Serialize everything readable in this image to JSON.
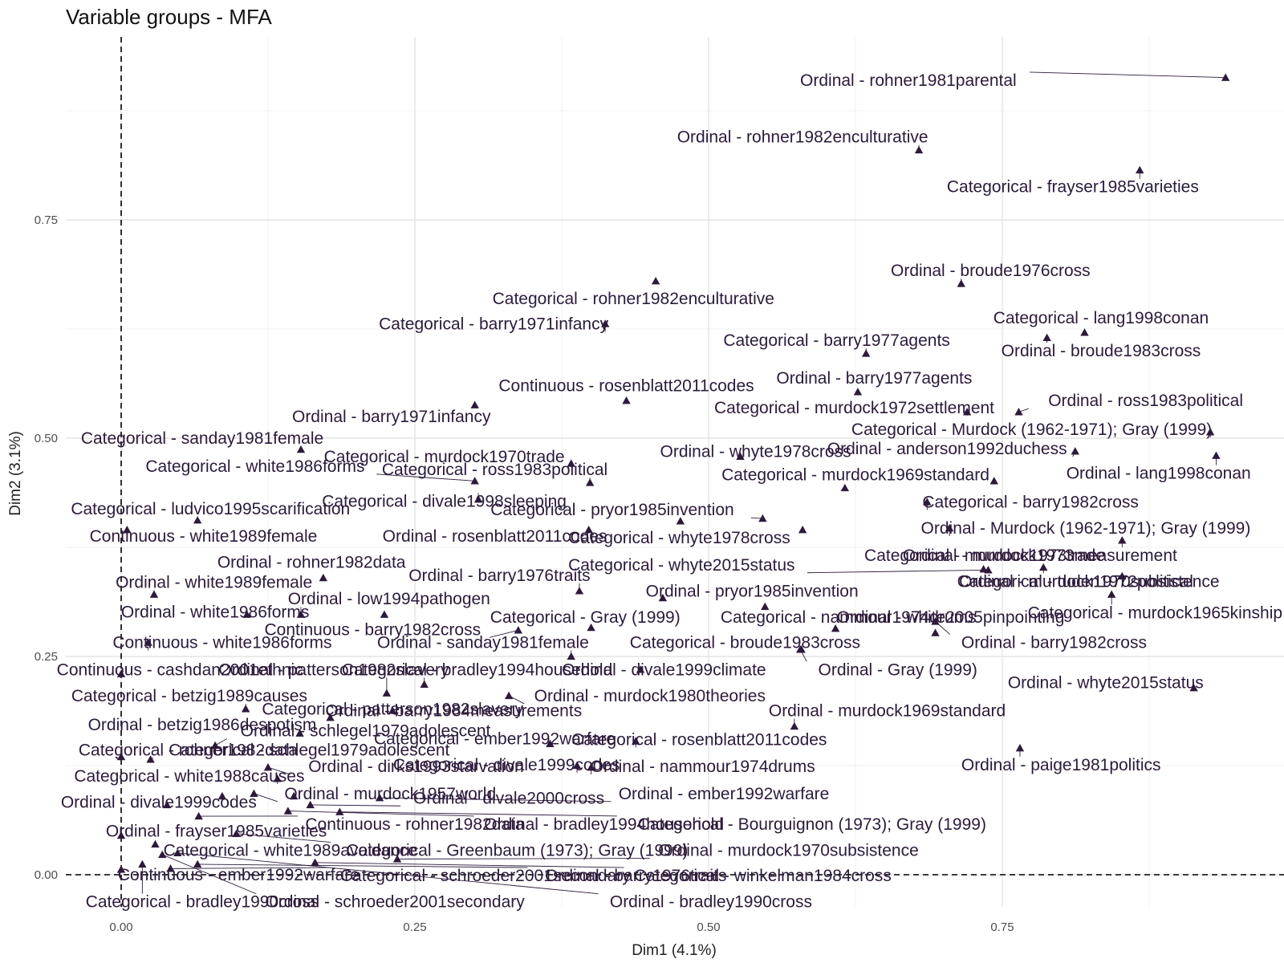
{
  "chart_data": {
    "type": "scatter",
    "title": "Variable groups - MFA",
    "xlabel": "Dim1 (4.1%)",
    "ylabel": "Dim2 (3.1%)",
    "xlim": [
      -0.05,
      1.0
    ],
    "ylim": [
      -0.04,
      0.98
    ],
    "x_ticks": [
      0.0,
      0.25,
      0.5,
      0.75
    ],
    "x_tick_labels": [
      "0.00",
      "0.25",
      "0.50",
      "0.75"
    ],
    "y_ticks": [
      0.0,
      0.25,
      0.5,
      0.75
    ],
    "y_tick_labels": [
      "0.00",
      "0.25",
      "0.50",
      "0.75"
    ],
    "grid": true,
    "reference_lines": "x = 0 and y = 0 (dashed)",
    "marker": "triangle",
    "color": "#2d1a3b",
    "points": [
      {
        "label": "Ordinal - rohner1981parental",
        "x": 0.94,
        "y": 0.913,
        "lx": 0.67,
        "ly": 0.91
      },
      {
        "label": "Ordinal - rohner1982enculturative",
        "x": 0.679,
        "y": 0.83,
        "lx": 0.58,
        "ly": 0.845
      },
      {
        "label": "Categorical - frayser1985varieties",
        "x": 0.867,
        "y": 0.807,
        "lx": 0.81,
        "ly": 0.788
      },
      {
        "label": "Ordinal - broude1976cross",
        "x": 0.715,
        "y": 0.677,
        "lx": 0.74,
        "ly": 0.692
      },
      {
        "label": "Categorical - rohner1982enculturative",
        "x": 0.455,
        "y": 0.68,
        "lx": 0.436,
        "ly": 0.66
      },
      {
        "label": "Categorical - barry1971infancy",
        "x": 0.412,
        "y": 0.631,
        "lx": 0.317,
        "ly": 0.631
      },
      {
        "label": "Categorical - lang1998conan",
        "x": 0.82,
        "y": 0.621,
        "lx": 0.834,
        "ly": 0.638
      },
      {
        "label": "Ordinal - broude1983cross",
        "x": 0.788,
        "y": 0.615,
        "lx": 0.834,
        "ly": 0.6
      },
      {
        "label": "Categorical - barry1977agents",
        "x": 0.634,
        "y": 0.597,
        "lx": 0.609,
        "ly": 0.612
      },
      {
        "label": "Ordinal - barry1977agents",
        "x": 0.627,
        "y": 0.553,
        "lx": 0.641,
        "ly": 0.569
      },
      {
        "label": "Continuous - rosenblatt2011codes",
        "x": 0.43,
        "y": 0.543,
        "lx": 0.43,
        "ly": 0.56
      },
      {
        "label": "Ordinal - barry1971infancy",
        "x": 0.301,
        "y": 0.538,
        "lx": 0.23,
        "ly": 0.525
      },
      {
        "label": "Categorical - murdock1972settlement",
        "x": 0.72,
        "y": 0.53,
        "lx": 0.624,
        "ly": 0.535
      },
      {
        "label": "Ordinal - ross1983political",
        "x": 0.764,
        "y": 0.53,
        "lx": 0.872,
        "ly": 0.543
      },
      {
        "label": "Categorical - Murdock (1962-1971); Gray (1999)",
        "x": 0.927,
        "y": 0.507,
        "lx": 0.775,
        "ly": 0.51
      },
      {
        "label": "Categorical - sanday1981female",
        "x": 0.153,
        "y": 0.487,
        "lx": 0.069,
        "ly": 0.5
      },
      {
        "label": "Categorical - murdock1970trade",
        "x": 0.383,
        "y": 0.471,
        "lx": 0.275,
        "ly": 0.479
      },
      {
        "label": "Ordinal - whyte1978cross",
        "x": 0.527,
        "y": 0.479,
        "lx": 0.54,
        "ly": 0.485
      },
      {
        "label": "Ordinal - anderson1992duchess",
        "x": 0.812,
        "y": 0.485,
        "lx": 0.703,
        "ly": 0.488
      },
      {
        "label": "Ordinal - lang1998conan",
        "x": 0.932,
        "y": 0.48,
        "lx": 0.883,
        "ly": 0.46
      },
      {
        "label": "Categorical - white1986forms",
        "x": 0.301,
        "y": 0.451,
        "lx": 0.114,
        "ly": 0.468
      },
      {
        "label": "Categorical - ross1983political",
        "x": 0.399,
        "y": 0.449,
        "lx": 0.318,
        "ly": 0.464
      },
      {
        "label": "Categorical - murdock1969standard",
        "x": 0.616,
        "y": 0.443,
        "lx": 0.625,
        "ly": 0.458
      },
      {
        "label": "Ordinal - murdock1969standard (marker only)",
        "x": 0.743,
        "y": 0.451,
        "lx": 0.743,
        "ly": 0.451
      },
      {
        "label": "Categorical - divale1998sleeping",
        "x": 0.304,
        "y": 0.43,
        "lx": 0.275,
        "ly": 0.428
      },
      {
        "label": "Categorical - barry1982cross",
        "x": 0.686,
        "y": 0.427,
        "lx": 0.774,
        "ly": 0.427
      },
      {
        "label": "Categorical - ludvico1995scarification",
        "x": 0.065,
        "y": 0.406,
        "lx": 0.076,
        "ly": 0.419
      },
      {
        "label": "Categorical - pryor1985invention",
        "x": 0.546,
        "y": 0.408,
        "lx": 0.418,
        "ly": 0.418
      },
      {
        "label": "Ordinal - pryor1985invention (marker)",
        "x": 0.476,
        "y": 0.405,
        "lx": 0.476,
        "ly": 0.405
      },
      {
        "label": "Ordinal - Murdock (1962-1971); Gray (1999)",
        "x": 0.705,
        "y": 0.397,
        "lx": 0.821,
        "ly": 0.397
      },
      {
        "label": "Continuous - white1989female",
        "x": 0.005,
        "y": 0.395,
        "lx": 0.07,
        "ly": 0.388
      },
      {
        "label": "Ordinal - rosenblatt2011codes",
        "x": 0.398,
        "y": 0.395,
        "lx": 0.318,
        "ly": 0.388
      },
      {
        "label": "Categorical - whyte1978cross",
        "x": 0.58,
        "y": 0.395,
        "lx": 0.475,
        "ly": 0.386
      },
      {
        "label": "Ordinal - murdock1973measurement",
        "x": 0.852,
        "y": 0.383,
        "lx": 0.782,
        "ly": 0.366
      },
      {
        "label": "Categorical - murdock1973trade",
        "x": 0.734,
        "y": 0.35,
        "lx": 0.735,
        "ly": 0.366
      },
      {
        "label": "Ordinal - rohner1982data",
        "x": 0.172,
        "y": 0.34,
        "lx": 0.162,
        "ly": 0.358
      },
      {
        "label": "Categorical - whyte2015status",
        "x": 0.738,
        "y": 0.349,
        "lx": 0.477,
        "ly": 0.355
      },
      {
        "label": "Ordinal - barry1976traits",
        "x": 0.39,
        "y": 0.325,
        "lx": 0.322,
        "ly": 0.343
      },
      {
        "label": "Ordinal - murdock1970subsistence",
        "x": 0.852,
        "y": 0.342,
        "lx": 0.824,
        "ly": 0.336
      },
      {
        "label": "Categorical - tuden1972political",
        "x": 0.785,
        "y": 0.352,
        "lx": 0.812,
        "ly": 0.336
      },
      {
        "label": "Ordinal - white1989female",
        "x": 0.028,
        "y": 0.321,
        "lx": 0.079,
        "ly": 0.335
      },
      {
        "label": "Ordinal - pryor1985invention",
        "x": 0.461,
        "y": 0.317,
        "lx": 0.537,
        "ly": 0.325
      },
      {
        "label": "Ordinal - low1994pathogen",
        "x": 0.153,
        "y": 0.298,
        "lx": 0.228,
        "ly": 0.316
      },
      {
        "label": "Categorical - murdock1965kinship",
        "x": 0.843,
        "y": 0.321,
        "lx": 0.88,
        "ly": 0.3
      },
      {
        "label": "Ordinal - white1986forms",
        "x": 0.107,
        "y": 0.298,
        "lx": 0.08,
        "ly": 0.301
      },
      {
        "label": "Marker near low1994pathogen",
        "x": 0.224,
        "y": 0.298,
        "lx": 0.224,
        "ly": 0.298
      },
      {
        "label": "Ordinal - nammour1974drums (marker)",
        "x": 0.548,
        "y": 0.307,
        "lx": 0.548,
        "ly": 0.307
      },
      {
        "label": "Categorical - Gray (1999)",
        "x": 0.4,
        "y": 0.283,
        "lx": 0.395,
        "ly": 0.295
      },
      {
        "label": "Categorical - nammour1974drums",
        "x": 0.608,
        "y": 0.282,
        "lx": 0.619,
        "ly": 0.295
      },
      {
        "label": "Ordinal - white2005pinpointing",
        "x": 0.693,
        "y": 0.277,
        "lx": 0.706,
        "ly": 0.295
      },
      {
        "label": "Continuous - barry1982cross",
        "x": 0.338,
        "y": 0.28,
        "lx": 0.214,
        "ly": 0.281
      },
      {
        "label": "Ordinal - sanday1981female",
        "x": 0.383,
        "y": 0.25,
        "lx": 0.308,
        "ly": 0.266
      },
      {
        "label": "Categorical - broude1983cross",
        "x": 0.579,
        "y": 0.258,
        "lx": 0.531,
        "ly": 0.266
      },
      {
        "label": "Ordinal - barry1982cross",
        "x": 0.693,
        "y": 0.29,
        "lx": 0.794,
        "ly": 0.266
      },
      {
        "label": "Continuous - white1986forms",
        "x": 0.023,
        "y": 0.266,
        "lx": 0.086,
        "ly": 0.266
      },
      {
        "label": "Ordinal - Gray (1999)",
        "x": 0.578,
        "y": 0.258,
        "lx": 0.661,
        "ly": 0.235
      },
      {
        "label": "Continuous - cashdan2001ethnic",
        "x": 0.0,
        "y": 0.23,
        "lx": 0.05,
        "ly": 0.235
      },
      {
        "label": "Ordinal - patterson1982slavery",
        "x": 0.226,
        "y": 0.208,
        "lx": 0.181,
        "ly": 0.235
      },
      {
        "label": "Categorical - bradley1994household",
        "x": 0.258,
        "y": 0.218,
        "lx": 0.303,
        "ly": 0.235
      },
      {
        "label": "Ordinal - divale1999climate",
        "x": 0.442,
        "y": 0.235,
        "lx": 0.462,
        "ly": 0.235
      },
      {
        "label": "Ordinal - whyte2015status",
        "x": 0.913,
        "y": 0.214,
        "lx": 0.838,
        "ly": 0.22
      },
      {
        "label": "Categorical - betzig1989causes",
        "x": 0.106,
        "y": 0.19,
        "lx": 0.058,
        "ly": 0.205
      },
      {
        "label": "Ordinal - murdock1980theories",
        "x": 0.33,
        "y": 0.205,
        "lx": 0.45,
        "ly": 0.205
      },
      {
        "label": "Categorical - patterson1982slavery",
        "x": 0.231,
        "y": 0.188,
        "lx": 0.231,
        "ly": 0.19
      },
      {
        "label": "Ordinal - barry1984measurements",
        "x": 0.178,
        "y": 0.18,
        "lx": 0.283,
        "ly": 0.188
      },
      {
        "label": "Ordinal - murdock1969standard",
        "x": 0.573,
        "y": 0.17,
        "lx": 0.652,
        "ly": 0.188
      },
      {
        "label": "Ordinal - betzig1986despotism",
        "x": 0.152,
        "y": 0.162,
        "lx": 0.069,
        "ly": 0.172
      },
      {
        "label": "Ordinal - schlegel1979adolescent",
        "x": 0.08,
        "y": 0.148,
        "lx": 0.208,
        "ly": 0.165
      },
      {
        "label": "Categorical - ember1992warfare",
        "x": 0.365,
        "y": 0.15,
        "lx": 0.318,
        "ly": 0.156
      },
      {
        "label": "Categorical - rosenblatt2011codes",
        "x": 0.438,
        "y": 0.153,
        "lx": 0.492,
        "ly": 0.155
      },
      {
        "label": "Ordinal - paige1981politics",
        "x": 0.765,
        "y": 0.145,
        "lx": 0.8,
        "ly": 0.126
      },
      {
        "label": "Categorical - rohner1982data",
        "x": 0.0,
        "y": 0.135,
        "lx": 0.057,
        "ly": 0.143
      },
      {
        "label": "Categorical - schlegel1979adolescent",
        "x": 0.025,
        "y": 0.132,
        "lx": 0.16,
        "ly": 0.143
      },
      {
        "label": "Ordinal - dirks1993starvation",
        "x": 0.125,
        "y": 0.123,
        "lx": 0.251,
        "ly": 0.124
      },
      {
        "label": "Categorical - divale1999codes",
        "x": 0.388,
        "y": 0.125,
        "lx": 0.328,
        "ly": 0.126
      },
      {
        "label": "Ordinal - nammour1974drums",
        "x": 0.4,
        "y": 0.123,
        "lx": 0.495,
        "ly": 0.124
      },
      {
        "label": "Categorical - white1988causes",
        "x": 0.133,
        "y": 0.11,
        "lx": 0.058,
        "ly": 0.113
      },
      {
        "label": "Categorical - divale1999codes (left)",
        "x": 0.086,
        "y": 0.09,
        "lx": 0.033,
        "ly": 0.083
      },
      {
        "label": "Ordinal - divale1999codes",
        "x": 0.039,
        "y": 0.08,
        "lx": 0.032,
        "ly": 0.083
      },
      {
        "label": "Categorical - ember1992warfare (left)",
        "x": 0.147,
        "y": 0.09,
        "lx": 0.11,
        "ly": 0.083
      },
      {
        "label": "Ordinal - murdock1957world",
        "x": 0.113,
        "y": 0.093,
        "lx": 0.229,
        "ly": 0.093
      },
      {
        "label": "Ordinal - divale2000cross",
        "x": 0.161,
        "y": 0.08,
        "lx": 0.33,
        "ly": 0.088
      },
      {
        "label": "Ordinal - ember1992warfare",
        "x": 0.22,
        "y": 0.088,
        "lx": 0.513,
        "ly": 0.093
      },
      {
        "label": "Continuous - rohner1982data",
        "x": 0.066,
        "y": 0.067,
        "lx": 0.25,
        "ly": 0.058
      },
      {
        "label": "Ordinal - bradley1994household",
        "x": 0.142,
        "y": 0.073,
        "lx": 0.411,
        "ly": 0.058
      },
      {
        "label": "Categorical - Bourguignon (1973); Gray (1999)",
        "x": 0.186,
        "y": 0.072,
        "lx": 0.588,
        "ly": 0.058
      },
      {
        "label": "Ordinal - frayser1985varieties",
        "x": 0.0,
        "y": 0.045,
        "lx": 0.081,
        "ly": 0.05
      },
      {
        "label": "Categorical - white1989avoidance",
        "x": 0.029,
        "y": 0.035,
        "lx": 0.144,
        "ly": 0.028
      },
      {
        "label": "Categorical - Greenbaum (1973); Gray (1999)",
        "x": 0.098,
        "y": 0.047,
        "lx": 0.337,
        "ly": 0.028
      },
      {
        "label": "Ordinal - murdock1970subsistence",
        "x": 0.235,
        "y": 0.018,
        "lx": 0.568,
        "ly": 0.028
      },
      {
        "label": "Continuous - ember1992warfare",
        "x": 0.0,
        "y": 0.006,
        "lx": 0.1,
        "ly": 0.0
      },
      {
        "label": "Categorical - schroeder2001secondary",
        "x": 0.042,
        "y": 0.007,
        "lx": 0.31,
        "ly": -0.001
      },
      {
        "label": "Ordinal - barry1976traits",
        "x": 0.065,
        "y": 0.012,
        "lx": 0.438,
        "ly": -0.001
      },
      {
        "label": "Categorical - winkelman1984cross",
        "x": 0.165,
        "y": 0.014,
        "lx": 0.546,
        "ly": -0.001
      },
      {
        "label": "Categorical - bradley1990cross",
        "x": 0.018,
        "y": 0.012,
        "lx": 0.069,
        "ly": -0.031
      },
      {
        "label": "Ordinal - schroeder2001secondary",
        "x": 0.035,
        "y": 0.023,
        "lx": 0.233,
        "ly": -0.031
      },
      {
        "label": "Ordinal - bradley1990cross",
        "x": 0.048,
        "y": 0.025,
        "lx": 0.502,
        "ly": -0.031
      }
    ]
  }
}
